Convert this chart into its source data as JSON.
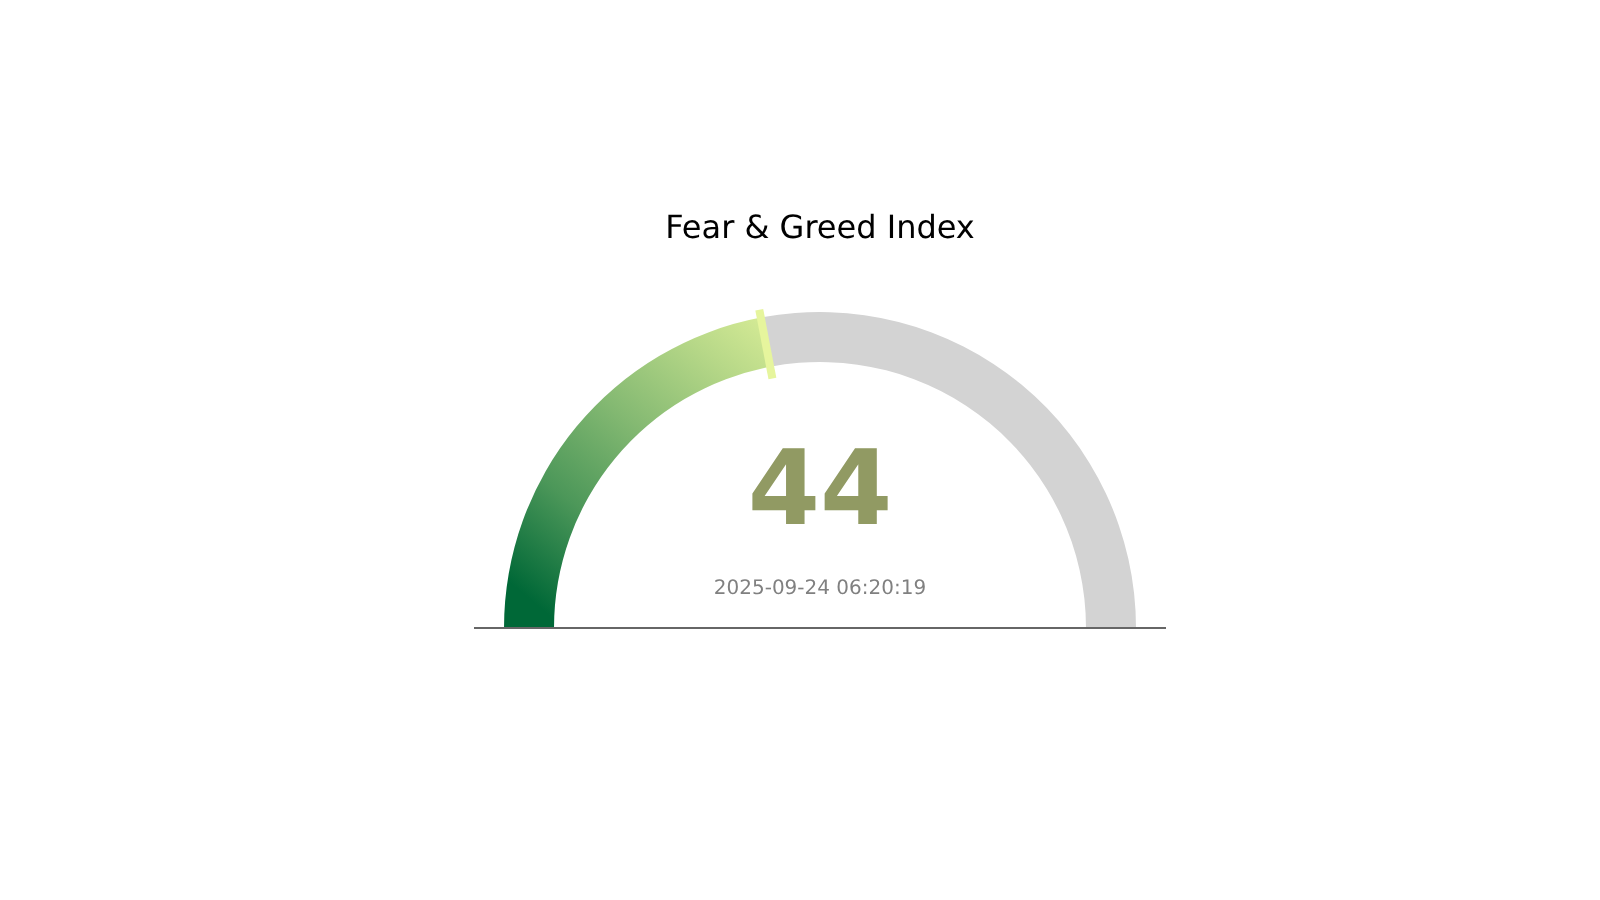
{
  "chart_data": {
    "type": "donut",
    "title": "Fear & Greed Index",
    "categories": [
      null,
      null
    ],
    "values": [
      44,
      56
    ],
    "colors": [
      "#e6f59d",
      "#d3d3d3"
    ],
    "value_labels": [
      "44",
      null
    ],
    "annotations": [
      "2025-09-24 06:20:19"
    ]
  }
}
